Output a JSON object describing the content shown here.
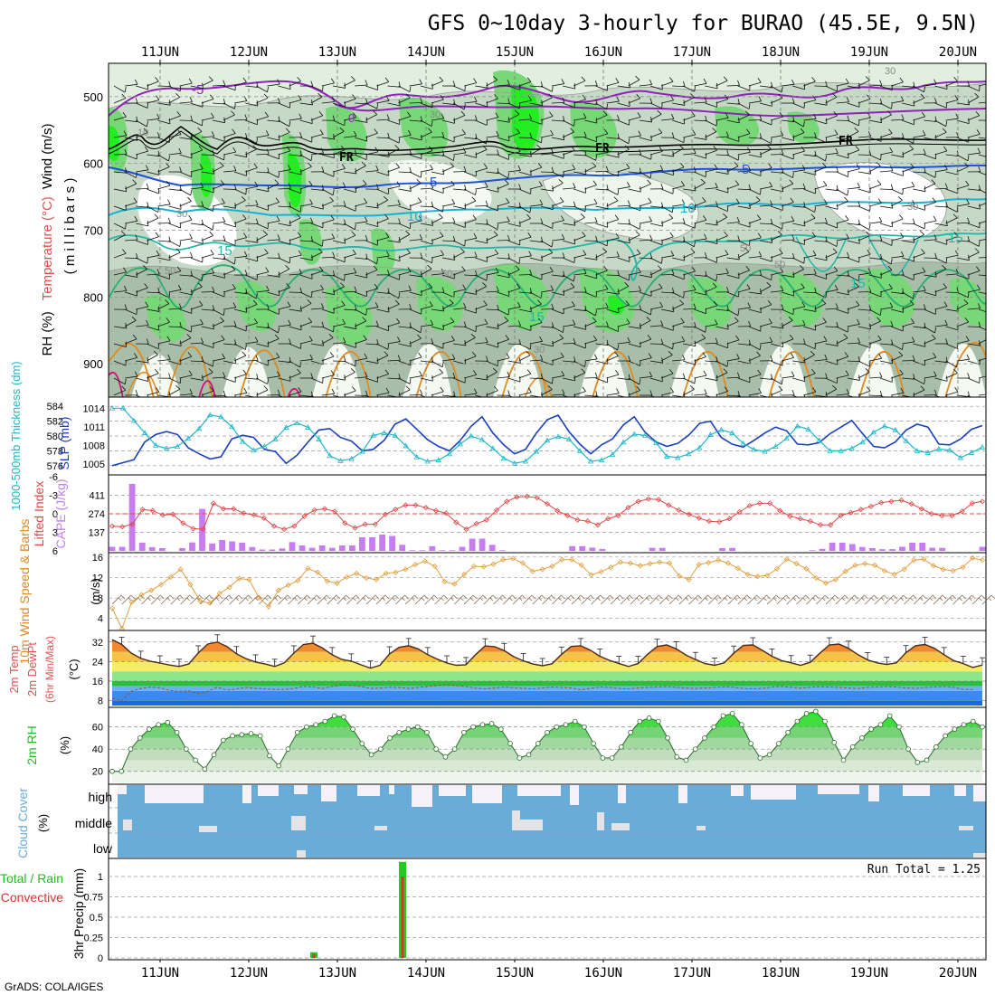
{
  "title": "GFS 0~10day 3-hourly for BURAO (45.5E, 9.5N)",
  "credit": "GrADS: COLA/IGES",
  "date_ticks": [
    "11JUN",
    "12JUN",
    "13JUN",
    "14JUN",
    "15JUN",
    "16JUN",
    "17JUN",
    "18JUN",
    "19JUN",
    "20JUN"
  ],
  "colors": {
    "rh_light": "#e2efe0",
    "rh_mid": "#c6d8c6",
    "rh_dark": "#a8bea8",
    "rh_green": "#78d878",
    "rh_bright": "#22ee22",
    "purple": "#8f22b8",
    "blue": "#1e50d8",
    "cyan": "#1ab0d0",
    "teal": "#20b8a8",
    "green_line": "#28b070",
    "orange": "#e08a20",
    "magenta": "#d0107a",
    "cape_bar": "#c77cf0",
    "lifted_line": "#e04848",
    "thick_line": "#1a3fbf",
    "slp_line": "#20b8c8",
    "wind_line": "#e0a040",
    "barb": "#8a6a50",
    "cloud": "#6aacd8",
    "precip_green": "#22cc22",
    "precip_red": "#e03030"
  },
  "chart_data": [
    {
      "type": "heatmap",
      "panel": "upper-air",
      "ylabel_parts": [
        "RH (%)",
        "Temperature (°C)",
        "Wind (m/s)"
      ],
      "yaxis_label": "( m i l l i b a r s )",
      "y_ticks": [
        500,
        600,
        700,
        800,
        900
      ],
      "ylim": [
        950,
        450
      ],
      "temperature_contours": [
        -5,
        0,
        5,
        10,
        15,
        20,
        25
      ],
      "contour_labels": [
        "-5",
        "0",
        "5",
        "10",
        "15",
        "FR",
        "FR",
        "FR",
        "5",
        "10",
        "15",
        "15",
        "15"
      ],
      "rh_labels": [
        "10",
        "30",
        "30",
        "30",
        "30",
        "50",
        "50",
        "50",
        "50",
        "30"
      ]
    },
    {
      "type": "line",
      "panel": "thickness-slp",
      "ylabel_left": "1000-500mb Thickness (dm)",
      "ylabel_right": "SLP (mb)",
      "left_ticks": [
        576,
        578,
        580,
        582,
        584
      ],
      "right_ticks": [
        1005,
        1008,
        1011,
        1014
      ],
      "series": [
        {
          "name": "1000-500mb Thickness",
          "unit": "dm",
          "values": [
            576.0,
            576.4,
            576.8,
            579.2,
            580.2,
            580.6,
            580.2,
            578.4,
            577.6,
            576.9,
            577.2,
            579.6,
            580.1,
            579.8,
            578.2,
            577.9,
            576.3,
            577.4,
            579.2,
            580.8,
            581.0,
            579.8,
            579.3,
            578.0,
            578.2,
            579.4,
            581.6,
            582.3,
            580.9,
            579.5,
            578.6,
            578.0,
            579.4,
            581.3,
            582.6,
            580.4,
            578.8,
            577.6,
            578.2,
            580.4,
            582.2,
            582.8,
            580.6,
            578.9,
            577.6,
            578.8,
            579.6,
            581.5,
            582.6,
            580.5,
            579.2,
            578.6,
            579.0,
            580.1,
            581.7,
            582.0,
            579.8,
            578.9,
            578.5,
            579.4,
            580.4,
            581.2,
            580.7,
            578.9,
            578.8,
            579.1,
            580.3,
            581.2,
            582.1,
            580.3,
            578.6,
            578.4,
            579.2,
            580.8,
            581.6,
            581.2,
            578.9,
            578.8,
            579.6,
            580.9,
            581.4
          ]
        },
        {
          "name": "SLP",
          "unit": "mb",
          "values": [
            1014.0,
            1014.0,
            1012.0,
            1010.0,
            1008.0,
            1007.5,
            1007.8,
            1009.1,
            1010.7,
            1012.9,
            1012.6,
            1011.0,
            1008.6,
            1007.2,
            1007.8,
            1009.0,
            1010.9,
            1011.6,
            1010.9,
            1009.0,
            1006.3,
            1005.5,
            1005.8,
            1007.0,
            1009.6,
            1010.0,
            1009.6,
            1007.9,
            1006.1,
            1005.4,
            1005.6,
            1006.6,
            1008.2,
            1009.5,
            1008.9,
            1007.5,
            1005.9,
            1005.1,
            1005.4,
            1007.0,
            1008.8,
            1009.4,
            1009.0,
            1007.1,
            1005.4,
            1005.6,
            1006.5,
            1008.5,
            1009.8,
            1009.6,
            1008.4,
            1006.2,
            1006.0,
            1006.6,
            1007.6,
            1009.7,
            1010.5,
            1010.0,
            1008.3,
            1007.3,
            1007.0,
            1007.8,
            1009.1,
            1011.1,
            1010.6,
            1008.8,
            1007.1,
            1007.1,
            1007.5,
            1008.5,
            1010.1,
            1011.1,
            1010.5,
            1008.7,
            1007.1,
            1006.8,
            1007.4,
            1007.2,
            1006.0,
            1006.8,
            1007.7
          ]
        }
      ]
    },
    {
      "type": "bar",
      "panel": "lifted-cape",
      "ylabel_left": "Lifted Index",
      "ylabel_right": "CAPE (J/kg)",
      "lifted_ticks": [
        "-6",
        "-3",
        "0",
        "3",
        "6"
      ],
      "cape_ticks": [
        "411",
        "274",
        "137"
      ],
      "series": [
        {
          "name": "CAPE",
          "unit": "J/kg",
          "values": [
            30,
            30,
            495,
            60,
            27,
            20,
            0,
            20,
            62,
            310,
            55,
            80,
            70,
            60,
            28,
            10,
            10,
            18,
            65,
            40,
            23,
            40,
            22,
            40,
            40,
            100,
            100,
            120,
            110,
            45,
            5,
            5,
            35,
            5,
            5,
            30,
            90,
            90,
            45,
            5,
            0,
            0,
            0,
            0,
            0,
            0,
            35,
            35,
            24,
            14,
            0,
            0,
            0,
            0,
            22,
            22,
            0,
            0,
            0,
            0,
            0,
            20,
            22,
            0,
            0,
            0,
            0,
            0,
            0,
            0,
            5,
            15,
            60,
            60,
            50,
            28,
            20,
            12,
            13,
            30,
            60,
            60,
            23,
            22,
            0,
            0,
            0,
            30
          ]
        },
        {
          "name": "Lifted Index",
          "values": [
            2.0,
            2.1,
            1.7,
            -0.7,
            -0.5,
            0.2,
            0.1,
            1.5,
            2.4,
            2.5,
            -1.7,
            -0.8,
            -0.8,
            -0.1,
            0.2,
            0.7,
            2.0,
            2.5,
            2.0,
            0.4,
            -0.6,
            -0.8,
            -0.4,
            1.5,
            2.3,
            1.7,
            1.7,
            0.1,
            -0.7,
            -1.4,
            -1.4,
            -1.0,
            -0.5,
            -0.1,
            1.4,
            2.5,
            1.6,
            1.0,
            -0.6,
            -2.0,
            -2.7,
            -2.8,
            -2.6,
            -1.6,
            -0.5,
            0.3,
            1.0,
            1.2,
            1.8,
            0.8,
            0.3,
            -1.0,
            -2.0,
            -2.4,
            -2.3,
            -1.4,
            -0.6,
            0.1,
            0.7,
            1.2,
            1.3,
            0.8,
            -0.3,
            -1.3,
            -1.7,
            -1.7,
            -0.5,
            0.4,
            0.8,
            1.2,
            1.8,
            1.8,
            0.3,
            -0.2,
            -0.7,
            -1.2,
            -1.8,
            -2.0,
            -2.2,
            -1.6,
            -0.8,
            0.0,
            0.3,
            0.3,
            -0.4,
            -1.7,
            -2.0
          ]
        }
      ]
    },
    {
      "type": "line",
      "panel": "wind-10m",
      "ylabel": "10m Wind Speed & Barbs",
      "unit_label": "(m/s)",
      "y_ticks": [
        4,
        8,
        12,
        16
      ],
      "series": [
        {
          "name": "10m Wind Speed",
          "values": [
            6.0,
            2.0,
            7.2,
            8.6,
            9.5,
            10.6,
            12.1,
            13.6,
            10.6,
            7.4,
            7.0,
            8.9,
            10.1,
            11.8,
            11.6,
            8.1,
            6.3,
            9.5,
            10.5,
            11.4,
            13.8,
            13.0,
            11.3,
            10.9,
            12.1,
            12.8,
            11.9,
            11.6,
            12.8,
            13.0,
            13.6,
            14.5,
            15.2,
            14.2,
            11.2,
            10.7,
            12.6,
            14.2,
            14.1,
            14.6,
            15.5,
            15.7,
            14.8,
            13.2,
            13.6,
            14.2,
            15.5,
            15.5,
            14.4,
            12.5,
            13.1,
            14.0,
            15.0,
            14.8,
            14.3,
            14.7,
            15.0,
            14.8,
            12.3,
            11.6,
            14.5,
            14.9,
            15.4,
            14.8,
            13.8,
            12.6,
            12.2,
            12.4,
            13.7,
            15.6,
            14.7,
            13.7,
            11.9,
            10.9,
            11.6,
            13.2,
            14.4,
            14.7,
            14.4,
            13.3,
            12.6,
            13.6,
            15.4,
            15.6,
            14.3,
            13.6,
            13.3,
            14.0,
            15.8,
            15.4
          ]
        }
      ]
    },
    {
      "type": "area",
      "panel": "temp-2m",
      "ylabel_parts": [
        "2m Temp",
        "2m DewPt",
        "(6hr Min/Max)"
      ],
      "unit_label": "(°C)",
      "y_ticks": [
        8,
        16,
        24,
        32
      ],
      "series": [
        {
          "name": "2m Temp",
          "values": [
            33.0,
            31.0,
            27.5,
            25.3,
            24.1,
            23.4,
            22.6,
            22.0,
            23.0,
            27.5,
            31.2,
            32.0,
            30.2,
            27.2,
            25.2,
            23.8,
            23.0,
            22.0,
            23.5,
            27.5,
            31.0,
            31.5,
            29.5,
            26.8,
            24.9,
            24.2,
            22.7,
            21.3,
            22.5,
            27.1,
            29.8,
            30.5,
            29.2,
            26.8,
            25.0,
            23.4,
            22.5,
            22.7,
            26.8,
            30.4,
            30.1,
            28.5,
            26.0,
            24.3,
            23.0,
            22.3,
            23.1,
            27.0,
            30.2,
            30.5,
            28.7,
            26.2,
            24.5,
            23.2,
            22.0,
            23.2,
            27.0,
            30.2,
            30.8,
            29.2,
            26.7,
            24.8,
            23.2,
            22.5,
            23.5,
            27.4,
            30.6,
            30.8,
            28.6,
            26.2,
            24.4,
            23.5,
            22.5,
            23.7,
            27.4,
            30.8,
            31.2,
            29.4,
            26.8,
            24.7,
            23.5,
            22.8,
            23.5,
            27.6,
            30.5,
            31.0,
            29.4,
            26.8,
            24.4,
            23.2,
            21.6,
            22.6
          ]
        },
        {
          "name": "2m DewPt",
          "values": [
            9.0,
            8.0,
            11.8,
            13.0,
            13.6,
            13.3,
            12.2,
            11.8,
            12.0,
            11.0,
            11.8,
            13.5,
            12.3,
            12.8,
            13.4,
            13.0,
            12.8,
            12.6,
            12.6,
            13.0,
            13.8,
            13.6,
            13.0,
            13.8,
            14.4,
            14.3,
            13.8,
            13.0,
            13.2,
            13.5,
            13.4,
            13.0,
            13.4,
            13.8,
            14.2,
            14.6,
            14.2,
            13.8,
            13.1,
            12.8,
            13.2,
            13.6,
            13.3,
            13.0,
            12.8,
            13.2,
            13.6,
            13.4,
            13.2,
            12.5,
            13.0,
            13.6,
            13.4,
            13.0,
            12.8,
            13.2,
            13.4,
            13.6,
            13.7,
            13.5,
            13.2,
            13.0,
            13.2,
            13.4,
            13.7,
            13.5,
            13.0,
            12.8,
            13.0,
            13.6,
            13.8,
            13.5,
            13.2,
            13.5,
            13.7,
            13.6,
            13.4,
            13.2,
            13.0,
            13.4,
            13.6,
            13.8,
            13.6,
            13.2,
            13.0,
            13.4,
            13.6,
            13.8,
            13.5,
            12.6,
            12.6
          ]
        }
      ]
    },
    {
      "type": "area",
      "panel": "rh-2m",
      "ylabel": "2m RH",
      "unit_label": "(%)",
      "y_ticks": [
        20,
        40,
        60
      ],
      "series": [
        {
          "name": "2m RH",
          "values": [
            20,
            20,
            40,
            50,
            58,
            62,
            64,
            55,
            40,
            30,
            22,
            35,
            48,
            52,
            53,
            54,
            52,
            34,
            25,
            40,
            55,
            60,
            62,
            65,
            70,
            69,
            58,
            45,
            35,
            40,
            50,
            55,
            58,
            60,
            55,
            40,
            33,
            40,
            55,
            60,
            62,
            63,
            58,
            45,
            32,
            35,
            45,
            55,
            60,
            62,
            65,
            60,
            45,
            32,
            32,
            42,
            55,
            65,
            68,
            65,
            50,
            33,
            30,
            40,
            50,
            60,
            70,
            72,
            62,
            45,
            32,
            35,
            45,
            55,
            65,
            72,
            74,
            65,
            46,
            30,
            42,
            50,
            58,
            62,
            70,
            60,
            40,
            28,
            30,
            42,
            52,
            58,
            62,
            65,
            60
          ]
        }
      ]
    },
    {
      "type": "heatmap",
      "panel": "cloud-cover",
      "ylabel": "Cloud Cover",
      "unit_label": "(%)",
      "levels": [
        "high",
        "middle",
        "low"
      ]
    },
    {
      "type": "bar",
      "panel": "precip",
      "ylabel_parts": [
        "Total / Rain",
        "Convective"
      ],
      "axis_label": "3hr Precip (mm)",
      "y_ticks": [
        "0",
        "0.25",
        "0.5",
        "0.75",
        "1"
      ],
      "run_total_label": "Run Total = 1.25",
      "bars": [
        {
          "x": "12JUN21",
          "total": 0.07,
          "convective": 0.05
        },
        {
          "x": "13JUN18",
          "total": 1.18,
          "convective": 1.0
        }
      ]
    }
  ]
}
